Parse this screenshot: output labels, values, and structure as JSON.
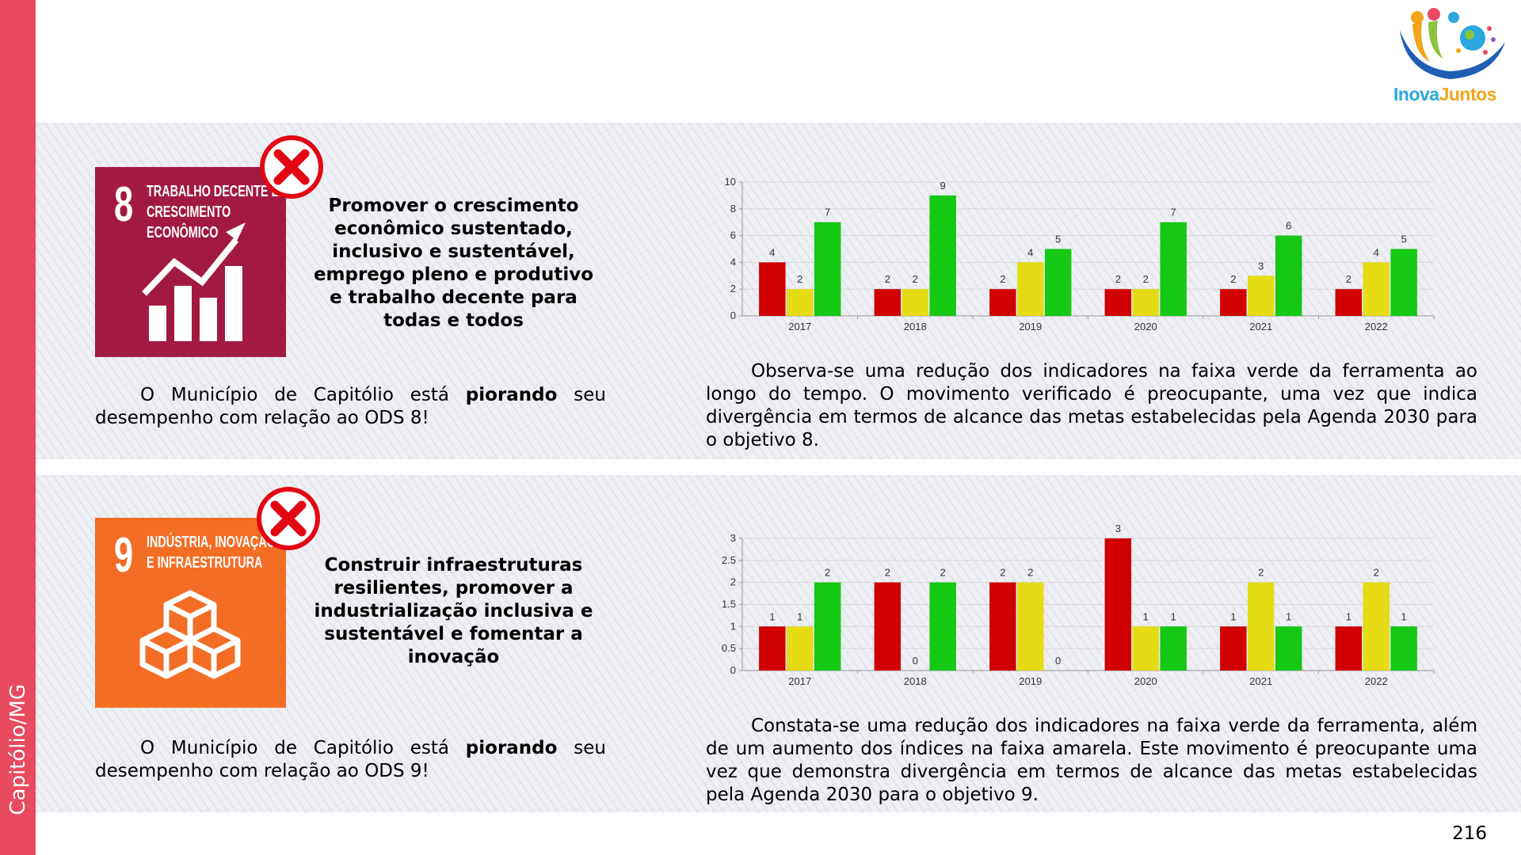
{
  "sidebar": {
    "label": "Capitólio/MG"
  },
  "logo": {
    "first": "Inova",
    "second": "Juntos"
  },
  "page_number": "216",
  "sections": [
    {
      "goal_number": "8",
      "goal_name_lines": [
        "TRABALHO DECENTE E",
        "CRESCIMENTO",
        "ECONÔMICO"
      ],
      "goal_text": "Promover o crescimento econômico sustentado, inclusivo e sustentável, emprego pleno e produtivo e trabalho decente para todas e todos",
      "status_before": "O Município de Capitólio está",
      "status_bold": "piorando",
      "status_after": "seu desempenho com relação ao ODS 8!",
      "analysis": "Observa-se uma redução dos indicadores na faixa verde da ferramenta ao longo do tempo. O movimento verificado é preocupante, uma vez que indica divergência em termos de alcance das metas estabelecidas pela Agenda 2030 para o objetivo 8."
    },
    {
      "goal_number": "9",
      "goal_name_lines": [
        "INDÚSTRIA, INOVAÇÃO",
        "E INFRAESTRUTURA"
      ],
      "goal_text": "Construir infraestruturas resilientes, promover a industrialização inclusiva e sustentável e fomentar a inovação",
      "status_before": "O Município de Capitólio está",
      "status_bold": "piorando",
      "status_after": "seu desempenho com relação ao ODS 9!",
      "analysis": "Constata-se uma redução dos indicadores na faixa verde da ferramenta, além de um aumento dos índices na faixa amarela. Este movimento é preocupante uma vez que demonstra divergência em termos de alcance das metas estabelecidas pela Agenda 2030 para o objetivo 9."
    }
  ],
  "chart_data": [
    {
      "type": "bar",
      "categories": [
        "2017",
        "2018",
        "2019",
        "2020",
        "2021",
        "2022"
      ],
      "series": [
        {
          "color": "#d00000",
          "values": [
            4,
            2,
            2,
            2,
            2,
            2
          ]
        },
        {
          "color": "#e6dc15",
          "values": [
            2,
            2,
            4,
            2,
            3,
            4
          ]
        },
        {
          "color": "#14c814",
          "values": [
            7,
            9,
            5,
            7,
            6,
            5
          ]
        }
      ],
      "ylim": [
        0,
        10
      ],
      "yticks": [
        0,
        2,
        4,
        6,
        8,
        10
      ],
      "grid": true
    },
    {
      "type": "bar",
      "categories": [
        "2017",
        "2018",
        "2019",
        "2020",
        "2021",
        "2022"
      ],
      "series": [
        {
          "color": "#d00000",
          "values": [
            1,
            2,
            2,
            3,
            1,
            1
          ]
        },
        {
          "color": "#e6dc15",
          "values": [
            1,
            0,
            2,
            1,
            2,
            2
          ]
        },
        {
          "color": "#14c814",
          "values": [
            2,
            2,
            0,
            1,
            1,
            1
          ]
        }
      ],
      "ylim": [
        0,
        3
      ],
      "yticks": [
        0,
        0.5,
        1,
        1.5,
        2,
        2.5,
        3
      ],
      "grid": true
    }
  ]
}
